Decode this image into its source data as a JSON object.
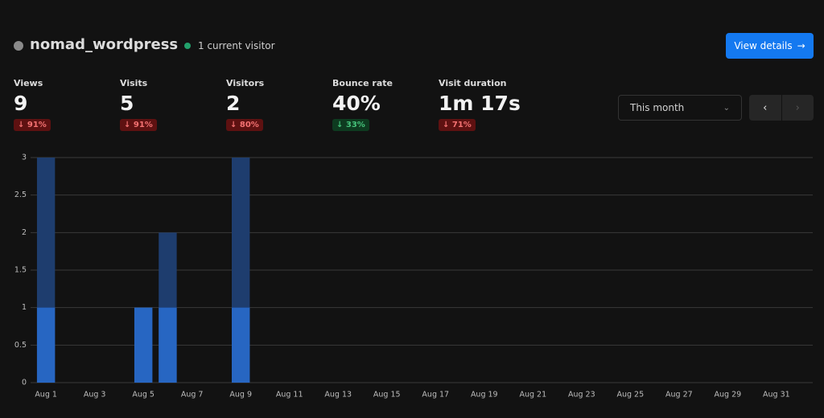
{
  "header": {
    "title": "nomad_wordpress",
    "status": "1 current visitor",
    "button": "View details"
  },
  "metrics": [
    {
      "label": "Views",
      "value": "9",
      "change": "91%",
      "color": "red"
    },
    {
      "label": "Visits",
      "value": "5",
      "change": "91%",
      "color": "red"
    },
    {
      "label": "Visitors",
      "value": "2",
      "change": "80%",
      "color": "red"
    },
    {
      "label": "Bounce rate",
      "value": "40%",
      "change": "33%",
      "color": "green"
    },
    {
      "label": "Visit duration",
      "value": "1m 17s",
      "change": "71%",
      "color": "red"
    }
  ],
  "date_filter": "This month",
  "chart_data": {
    "type": "bar",
    "categories": [
      "Aug 1",
      null,
      "Aug 3",
      null,
      "Aug 5",
      null,
      "Aug 7",
      null,
      "Aug 9",
      null,
      "Aug 11",
      null,
      "Aug 13",
      null,
      "Aug 15",
      null,
      "Aug 17",
      null,
      "Aug 19",
      null,
      "Aug 21",
      null,
      "Aug 23",
      null,
      "Aug 25",
      null,
      "Aug 27",
      null,
      "Aug 29",
      null,
      "Aug 31"
    ],
    "series": [
      {
        "color": "#1e3d6e",
        "values": [
          3,
          0,
          0,
          0,
          1,
          2,
          0,
          0,
          3,
          0,
          0,
          0,
          0,
          0,
          0,
          0,
          0,
          0,
          0,
          0,
          0,
          0,
          0,
          0,
          0,
          0,
          0,
          0,
          0,
          0,
          0
        ]
      },
      {
        "color": "#2766c2",
        "values": [
          1,
          0,
          0,
          0,
          1,
          1,
          0,
          0,
          1,
          0,
          0,
          0,
          0,
          0,
          0,
          0,
          0,
          0,
          0,
          0,
          0,
          0,
          0,
          0,
          0,
          0,
          0,
          0,
          0,
          0,
          0
        ]
      }
    ],
    "ylim": [
      0,
      3
    ],
    "yticks": [
      0,
      0.5,
      1,
      1.5,
      2,
      2.5,
      3
    ],
    "grid": true
  }
}
